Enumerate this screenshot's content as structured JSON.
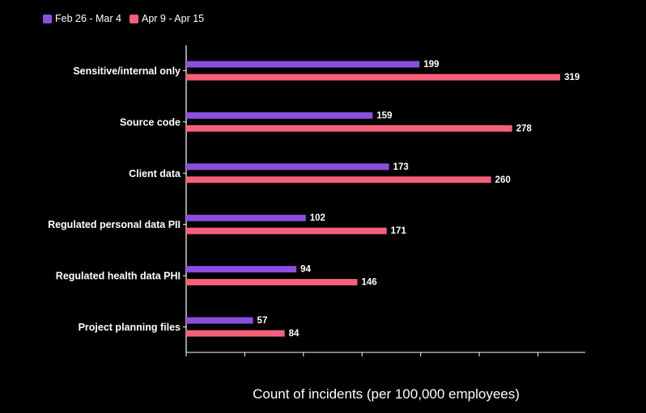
{
  "chart_data": {
    "type": "bar",
    "orientation": "horizontal",
    "categories": [
      "Sensitive/internal only",
      "Source code",
      "Client data",
      "Regulated personal data PII",
      "Regulated health data PHI",
      "Project planning files"
    ],
    "series": [
      {
        "name": "Feb 26 - Mar 4",
        "color": "#8b4fe0",
        "values": [
          199,
          159,
          173,
          102,
          94,
          57
        ]
      },
      {
        "name": "Apr 9 - Apr 15",
        "color": "#f7607a",
        "values": [
          319,
          278,
          260,
          171,
          146,
          84
        ]
      }
    ],
    "xlabel": "Count of incidents (per 100,000 employees)",
    "ylabel": "",
    "xlim": [
      0,
      340
    ],
    "legend_position": "top-left",
    "grid": false
  }
}
